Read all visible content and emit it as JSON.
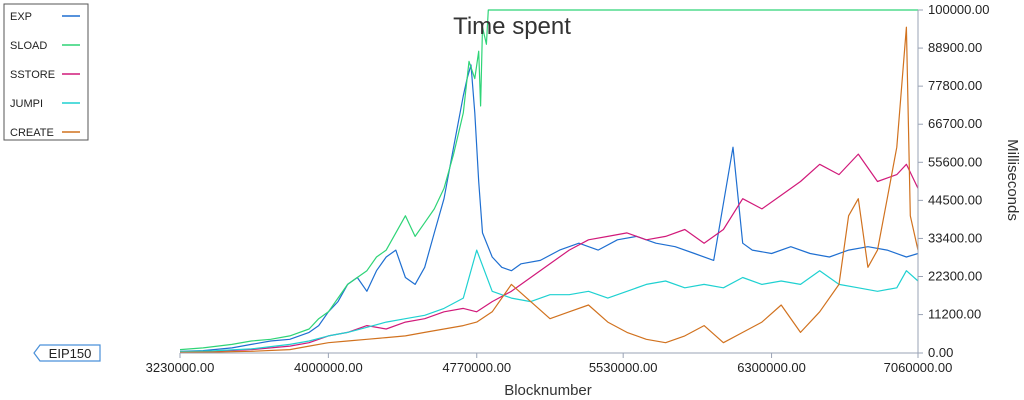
{
  "chart_data": {
    "type": "line",
    "title": "Time spent",
    "xlabel": "Blocknumber",
    "ylabel": "Milliseconds",
    "xlim": [
      3230000,
      7060000
    ],
    "ylim": [
      0,
      100000
    ],
    "x_ticks": [
      "3230000.00",
      "4000000.00",
      "4770000.00",
      "5530000.00",
      "6300000.00",
      "7060000.00"
    ],
    "x_tick_values": [
      3230000,
      4000000,
      4770000,
      5530000,
      6300000,
      7060000
    ],
    "y_ticks": [
      "0.00",
      "11200.00",
      "22300.00",
      "33400.00",
      "44500.00",
      "55600.00",
      "66700.00",
      "77800.00",
      "88900.00",
      "100000.00"
    ],
    "y_tick_values": [
      0,
      11200,
      22300,
      33400,
      44500,
      55600,
      66700,
      77800,
      88900,
      100000
    ],
    "legend_position": "top-left",
    "grid": false,
    "annotation": {
      "label": "EIP150",
      "x": 3230000
    },
    "series": [
      {
        "name": "EXP",
        "color": "#1f6fd1",
        "x": [
          3230000,
          3350000,
          3500000,
          3600000,
          3700000,
          3800000,
          3900000,
          3950000,
          4000000,
          4050000,
          4100000,
          4150000,
          4200000,
          4250000,
          4300000,
          4350000,
          4400000,
          4450000,
          4500000,
          4550000,
          4600000,
          4650000,
          4700000,
          4720000,
          4740000,
          4760000,
          4780000,
          4800000,
          4850000,
          4900000,
          4950000,
          5000000,
          5100000,
          5200000,
          5300000,
          5400000,
          5500000,
          5600000,
          5700000,
          5800000,
          5900000,
          6000000,
          6100000,
          6150000,
          6200000,
          6300000,
          6400000,
          6500000,
          6600000,
          6700000,
          6800000,
          6900000,
          7000000,
          7060000
        ],
        "y": [
          500,
          700,
          1500,
          2500,
          3500,
          4000,
          6000,
          8000,
          12000,
          15000,
          20000,
          22000,
          18000,
          24000,
          28000,
          30000,
          22000,
          20000,
          25000,
          35000,
          45000,
          60000,
          75000,
          80000,
          84000,
          70000,
          50000,
          35000,
          28000,
          25000,
          24000,
          26000,
          27000,
          30000,
          32000,
          30000,
          33000,
          34000,
          32000,
          31000,
          29000,
          27000,
          60000,
          32000,
          30000,
          29000,
          31000,
          29000,
          28000,
          30000,
          31000,
          30000,
          28000,
          29000
        ]
      },
      {
        "name": "SLOAD",
        "color": "#2ed477",
        "x": [
          3230000,
          3350000,
          3500000,
          3600000,
          3700000,
          3800000,
          3900000,
          3950000,
          4000000,
          4050000,
          4100000,
          4150000,
          4200000,
          4250000,
          4300000,
          4350000,
          4400000,
          4450000,
          4500000,
          4550000,
          4600000,
          4650000,
          4700000,
          4730000,
          4760000,
          4780000,
          4790000,
          4800000,
          4820000,
          4830000,
          4850000,
          7060000
        ],
        "y": [
          1000,
          1500,
          2500,
          3500,
          4000,
          5000,
          7000,
          10000,
          12000,
          16000,
          20000,
          22000,
          24000,
          28000,
          30000,
          35000,
          40000,
          34000,
          38000,
          42000,
          48000,
          58000,
          70000,
          85000,
          80000,
          88000,
          72000,
          95000,
          90000,
          100000,
          100000,
          100000
        ]
      },
      {
        "name": "SSTORE",
        "color": "#d11a7a",
        "x": [
          3230000,
          3400000,
          3600000,
          3800000,
          3900000,
          4000000,
          4100000,
          4200000,
          4300000,
          4400000,
          4500000,
          4600000,
          4700000,
          4770000,
          4850000,
          4950000,
          5050000,
          5150000,
          5250000,
          5350000,
          5450000,
          5550000,
          5650000,
          5750000,
          5850000,
          5950000,
          6050000,
          6150000,
          6250000,
          6350000,
          6450000,
          6550000,
          6650000,
          6750000,
          6850000,
          6950000,
          7000000,
          7060000
        ],
        "y": [
          300,
          500,
          1000,
          2000,
          3000,
          5000,
          6000,
          8000,
          7000,
          9000,
          10000,
          12000,
          13000,
          12000,
          15000,
          18000,
          22000,
          26000,
          30000,
          33000,
          34000,
          35000,
          33000,
          34000,
          36000,
          32000,
          36000,
          45000,
          42000,
          46000,
          50000,
          55000,
          52000,
          58000,
          50000,
          52000,
          55000,
          48000
        ]
      },
      {
        "name": "JUMPI",
        "color": "#1fd1d1",
        "x": [
          3230000,
          3400000,
          3600000,
          3800000,
          3900000,
          4000000,
          4100000,
          4200000,
          4300000,
          4400000,
          4500000,
          4600000,
          4700000,
          4770000,
          4850000,
          4950000,
          5050000,
          5150000,
          5250000,
          5350000,
          5450000,
          5550000,
          5650000,
          5750000,
          5850000,
          5950000,
          6050000,
          6150000,
          6250000,
          6350000,
          6450000,
          6550000,
          6650000,
          6750000,
          6850000,
          6950000,
          7000000,
          7060000
        ],
        "y": [
          400,
          600,
          1200,
          2500,
          3500,
          5000,
          6000,
          7500,
          9000,
          10000,
          11000,
          13000,
          16000,
          30000,
          18000,
          16000,
          15000,
          17000,
          17000,
          18000,
          16000,
          18000,
          20000,
          21000,
          19000,
          20000,
          19000,
          22000,
          20000,
          21000,
          20000,
          24000,
          20000,
          19000,
          18000,
          19000,
          24000,
          21000
        ]
      },
      {
        "name": "CREATE",
        "color": "#d1721f",
        "x": [
          3230000,
          3400000,
          3600000,
          3800000,
          3900000,
          4000000,
          4100000,
          4200000,
          4300000,
          4400000,
          4500000,
          4600000,
          4700000,
          4770000,
          4850000,
          4950000,
          5050000,
          5150000,
          5250000,
          5350000,
          5450000,
          5550000,
          5650000,
          5750000,
          5850000,
          5950000,
          6050000,
          6150000,
          6250000,
          6350000,
          6450000,
          6550000,
          6650000,
          6700000,
          6750000,
          6800000,
          6850000,
          6900000,
          6950000,
          7000000,
          7020000,
          7060000
        ],
        "y": [
          200,
          300,
          500,
          1000,
          2000,
          3000,
          3500,
          4000,
          4500,
          5000,
          6000,
          7000,
          8000,
          9000,
          12000,
          20000,
          15000,
          10000,
          12000,
          14000,
          9000,
          6000,
          4000,
          3000,
          5000,
          8000,
          3000,
          6000,
          9000,
          14000,
          6000,
          12000,
          20000,
          40000,
          45000,
          25000,
          30000,
          45000,
          60000,
          95000,
          40000,
          30000
        ]
      }
    ]
  }
}
